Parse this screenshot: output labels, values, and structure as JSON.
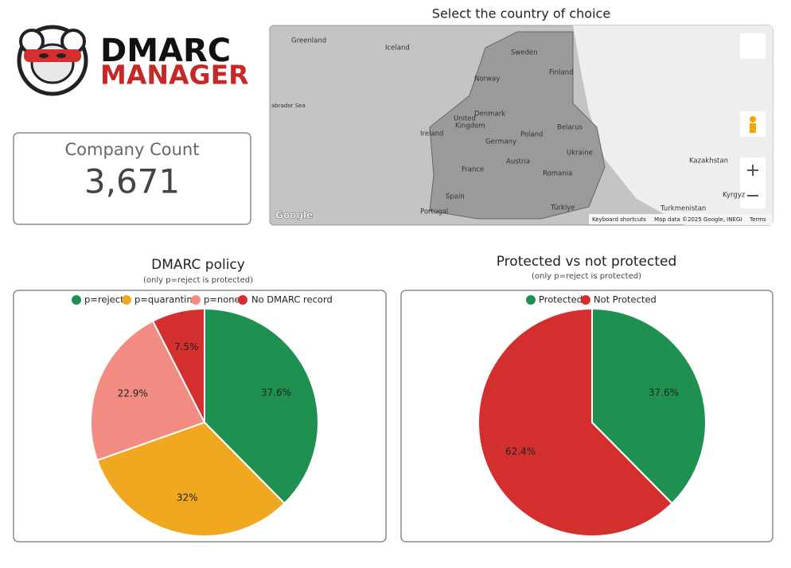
{
  "logo": {
    "line1": "DMARC",
    "line2": "MANAGER"
  },
  "kpi": {
    "label": "Company Count",
    "value": "3,671"
  },
  "map": {
    "title": "Select the country of choice",
    "labels": [
      "Greenland",
      "Iceland",
      "Sweden",
      "Finland",
      "Norway",
      "United",
      "Kingdom",
      "Denmark",
      "Poland",
      "Belarus",
      "Germany",
      "Ukraine",
      "France",
      "Austria",
      "Romania",
      "Kazakhstan",
      "Spain",
      "Portugal",
      "Türkiye",
      "Turkmenistan",
      "Kyrgyz",
      "Ireland",
      "abrador Sea"
    ],
    "attribution": [
      "Google",
      "Keyboard shortcuts",
      "Map data ©2025 Google, INEGI",
      "Terms"
    ]
  },
  "chart_data": [
    {
      "type": "pie",
      "title": "DMARC policy",
      "subtitle": "(only p=reject is protected)",
      "categories": [
        "p=reject",
        "p=quarantine",
        "p=none",
        "No DMARC record"
      ],
      "values": [
        37.6,
        32,
        22.9,
        7.5
      ],
      "value_labels": [
        "37.6%",
        "32%",
        "22.9%",
        "7.5%"
      ],
      "colors": [
        "#1e9150",
        "#f0a820",
        "#f28b82",
        "#d32f2f"
      ]
    },
    {
      "type": "pie",
      "title": "Protected vs not protected",
      "subtitle": "(only p=reject is protected)",
      "categories": [
        "Protected",
        "Not Protected"
      ],
      "values": [
        37.6,
        62.4
      ],
      "value_labels": [
        "37.6%",
        "62.4%"
      ],
      "colors": [
        "#1e9150",
        "#d32f2f"
      ]
    }
  ]
}
